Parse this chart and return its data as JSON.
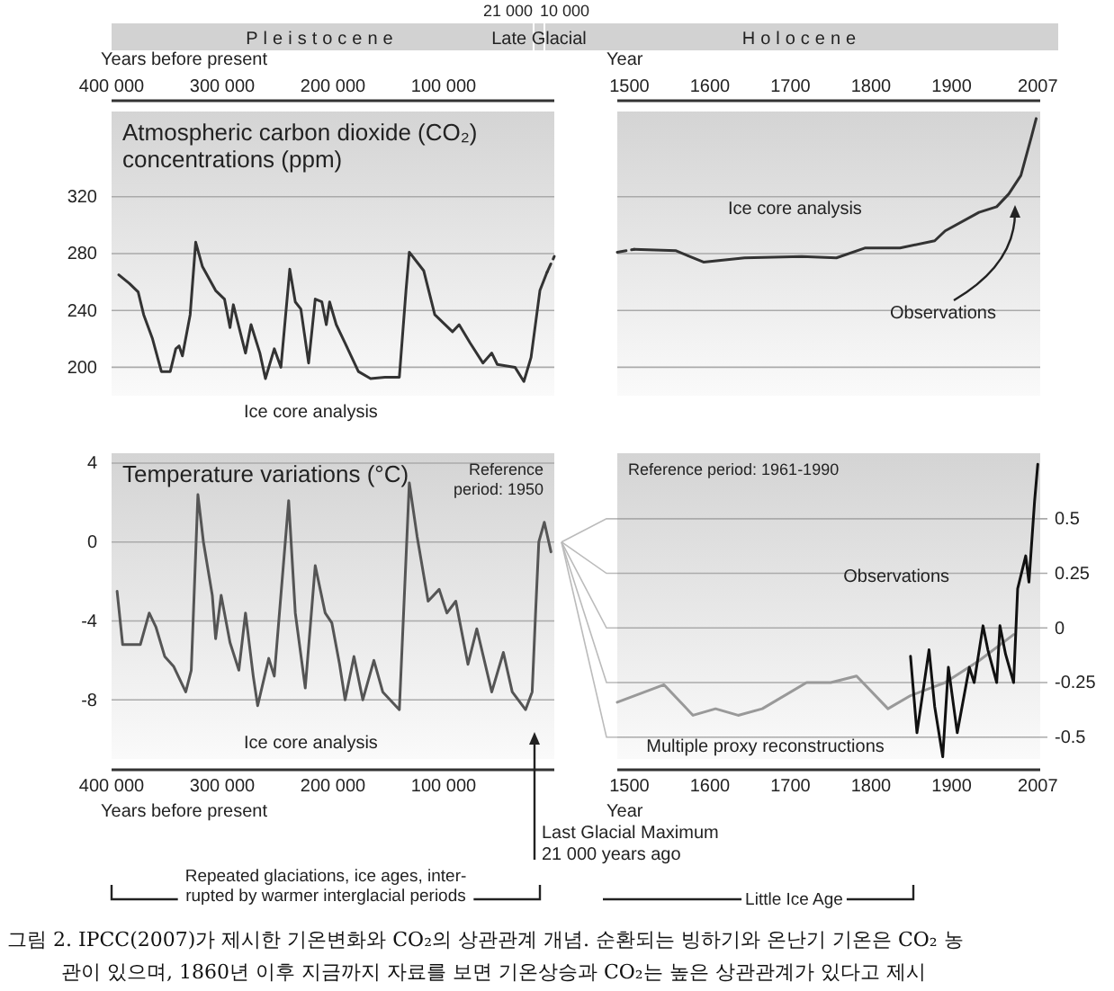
{
  "chart_data": [
    {
      "type": "line",
      "title": "Atmospheric carbon dioxide (CO₂) concentrations (ppm)",
      "xlabel": "Years before present",
      "xlim": [
        400000,
        0
      ],
      "xticks": [
        {
          "value": 400000,
          "label": "400 000"
        },
        {
          "value": 300000,
          "label": "300 000"
        },
        {
          "value": 200000,
          "label": "200 000"
        },
        {
          "value": 100000,
          "label": "100 000"
        }
      ],
      "ylim": [
        180,
        380
      ],
      "yticks": [
        200,
        240,
        280,
        320
      ],
      "grid": "y",
      "series": [
        {
          "color": "#333333",
          "x": [
            393500,
            384000,
            376000,
            371000,
            363000,
            355000,
            347000,
            342000,
            339000,
            336000,
            329000,
            324000,
            318000,
            306000,
            298000,
            293000,
            290000,
            279000,
            274000,
            266000,
            261000,
            253000,
            247000,
            239000,
            234000,
            229000,
            222000,
            216000,
            210000,
            206000,
            203000,
            197000,
            189000,
            177000,
            166000,
            153000,
            140000,
            134000,
            131000,
            124000,
            118000,
            108000,
            92000,
            86000,
            76000,
            64500,
            56500,
            51500,
            35500,
            27500,
            21000,
            13000,
            6500
          ],
          "values": [
            265,
            259,
            253,
            237,
            220,
            197,
            197,
            213,
            215,
            208,
            237,
            288,
            271,
            254,
            248,
            228,
            244,
            210,
            230,
            210,
            192,
            213,
            200,
            269,
            246,
            241,
            203,
            248,
            246,
            230,
            246,
            230,
            217,
            197,
            192,
            193,
            193,
            254,
            281,
            274,
            268,
            237,
            225,
            230,
            217,
            203,
            210,
            202,
            200,
            190,
            207,
            254,
            267
          ]
        },
        {
          "color": "#333333",
          "line_style": "dashed",
          "x": [
            6500,
            0
          ],
          "values": [
            267,
            278
          ]
        }
      ],
      "annotations": [
        "Pleistocene",
        "Late Glacial",
        "Holocene",
        "21 000",
        "10 000",
        "Ice core analysis"
      ]
    },
    {
      "type": "line",
      "xlabel": "Year",
      "xlim": [
        1485,
        2010
      ],
      "xticks": [
        1500,
        1600,
        1700,
        1800,
        1900,
        2007
      ],
      "ylim": [
        180,
        380
      ],
      "yticks": [
        200,
        240,
        280,
        320
      ],
      "grid": "y",
      "tick_labels": "x",
      "series": [
        {
          "color": "#333333",
          "line_style": "dashed",
          "x": [
            1485,
            1506
          ],
          "values": [
            281,
            283
          ]
        },
        {
          "color": "#333333",
          "x": [
            1506,
            1558,
            1592,
            1643,
            1714,
            1757,
            1793,
            1836,
            1879,
            1892,
            1934,
            1956,
            1971,
            1986,
            1999,
            2005
          ],
          "values": [
            283,
            282,
            274,
            277,
            278,
            277,
            284,
            284,
            289,
            296,
            309,
            313,
            322,
            335,
            362,
            375
          ]
        }
      ],
      "annotations": [
        "Ice core analysis",
        "Observations"
      ]
    },
    {
      "type": "line",
      "title": "Temperature variations (°C)",
      "xlabel": "Years before present",
      "xlim": [
        400000,
        0
      ],
      "xticks": [
        {
          "value": 400000,
          "label": "400 000"
        },
        {
          "value": 300000,
          "label": "300 000"
        },
        {
          "value": 200000,
          "label": "200 000"
        },
        {
          "value": 100000,
          "label": "100 000"
        }
      ],
      "ylim": [
        -11,
        4.5
      ],
      "yticks": [
        -8,
        -4,
        0,
        4
      ],
      "grid": "y",
      "series": [
        {
          "color": "#555555",
          "x": [
            395000,
            390000,
            374000,
            366000,
            360000,
            352000,
            344000,
            333000,
            328000,
            322000,
            317000,
            309000,
            306000,
            301000,
            293000,
            285000,
            279000,
            272000,
            268000,
            258000,
            253000,
            240000,
            234000,
            225000,
            216000,
            207000,
            201000,
            194000,
            189000,
            181000,
            173000,
            163000,
            155000,
            140000,
            131000,
            124000,
            114000,
            104000,
            97000,
            89000,
            78000,
            70000,
            56500,
            46000,
            38000,
            26000,
            20000,
            17000,
            14000,
            9000,
            3000
          ],
          "values": [
            -2.5,
            -5.2,
            -5.2,
            -3.6,
            -4.3,
            -5.8,
            -6.3,
            -7.6,
            -6.5,
            2.4,
            0,
            -2.7,
            -4.9,
            -2.7,
            -5.1,
            -6.5,
            -3.6,
            -6.8,
            -8.3,
            -5.9,
            -6.8,
            2.1,
            -3.6,
            -7.4,
            -1.2,
            -3.6,
            -4.1,
            -6.2,
            -8,
            -5.8,
            -8,
            -6,
            -7.6,
            -8.5,
            3,
            0.3,
            -3,
            -2.4,
            -3.6,
            -3,
            -6.2,
            -4.4,
            -7.6,
            -5.6,
            -7.6,
            -8.5,
            -7.6,
            -3.7,
            0,
            1,
            -0.5
          ]
        }
      ],
      "annotations": [
        "Reference period: 1950",
        "Ice core analysis",
        "Last Glacial Maximum 21 000 years ago",
        "Repeated glaciations, ice ages, inter-rupted by warmer interglacial periods"
      ]
    },
    {
      "type": "line",
      "xlabel": "Year",
      "xlim": [
        1485,
        2010
      ],
      "xticks": [
        1500,
        1600,
        1700,
        1800,
        1900,
        2007
      ],
      "ylim": [
        -0.6,
        0.8
      ],
      "yticks": [
        -0.5,
        -0.25,
        0,
        0.25,
        0.5
      ],
      "grid": "y",
      "series": [
        {
          "color": "#999999",
          "x": [
            1485,
            1543,
            1579,
            1607,
            1635,
            1665,
            1720,
            1750,
            1782,
            1821,
            1849,
            1892,
            1934,
            1977
          ],
          "values": [
            -0.34,
            -0.26,
            -0.4,
            -0.37,
            -0.4,
            -0.37,
            -0.25,
            -0.25,
            -0.22,
            -0.37,
            -0.31,
            -0.25,
            -0.15,
            -0.03
          ]
        },
        {
          "color": "#111111",
          "x": [
            1849,
            1857,
            1872,
            1879,
            1889,
            1896,
            1907,
            1922,
            1928,
            1939,
            1945,
            1956,
            1960,
            1967,
            1977,
            1982,
            1992,
            1996,
            2003,
            2007
          ],
          "values": [
            -0.13,
            -0.48,
            -0.1,
            -0.36,
            -0.59,
            -0.18,
            -0.48,
            -0.18,
            -0.25,
            0.01,
            -0.1,
            -0.25,
            0.01,
            -0.12,
            -0.25,
            0.18,
            0.33,
            0.21,
            0.58,
            0.75
          ]
        }
      ],
      "annotations": [
        "Reference period: 1961-1990",
        "Observations",
        "Multiple proxy reconstructions",
        "Little Ice Age",
        "그림 2. IPCC(2007)가 제시한 기온변화와 CO₂의 상관관계 개념. 순환되는 빙하기와 온난기 기온은 CO₂ 농",
        "관이 있으며, 1860년 이후 지금까지 자료를 보면 기온상승과 CO₂는 높은 상관관계가 있다고 제시"
      ]
    }
  ]
}
